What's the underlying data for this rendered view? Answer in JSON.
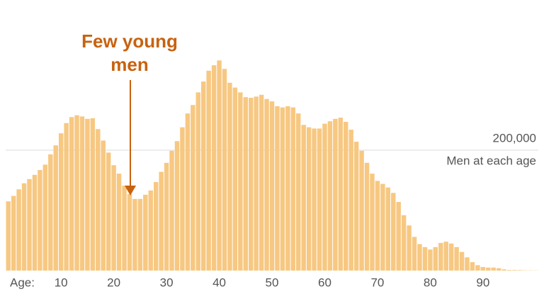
{
  "chart_data": {
    "type": "bar",
    "annotation": [
      "Few young",
      "men"
    ],
    "xlabel": "Age:",
    "ylabel": "Men at each age",
    "x": [
      0,
      1,
      2,
      3,
      4,
      5,
      6,
      7,
      8,
      9,
      10,
      11,
      12,
      13,
      14,
      15,
      16,
      17,
      18,
      19,
      20,
      21,
      22,
      23,
      24,
      25,
      26,
      27,
      28,
      29,
      30,
      31,
      32,
      33,
      34,
      35,
      36,
      37,
      38,
      39,
      40,
      41,
      42,
      43,
      44,
      45,
      46,
      47,
      48,
      49,
      50,
      51,
      52,
      53,
      54,
      55,
      56,
      57,
      58,
      59,
      60,
      61,
      62,
      63,
      64,
      65,
      66,
      67,
      68,
      69,
      70,
      71,
      72,
      73,
      74,
      75,
      76,
      77,
      78,
      79,
      80,
      81,
      82,
      83,
      84,
      85,
      86,
      87,
      88,
      89,
      90,
      91,
      92,
      93,
      94,
      95,
      96,
      97,
      98,
      99,
      100
    ],
    "values": [
      115000,
      124000,
      135000,
      145000,
      152000,
      159000,
      167000,
      176000,
      193000,
      208000,
      228000,
      245000,
      255000,
      258000,
      256000,
      252000,
      253000,
      235000,
      216000,
      196000,
      175000,
      161000,
      141000,
      127000,
      119000,
      119000,
      126000,
      133000,
      147000,
      164000,
      179000,
      199000,
      215000,
      238000,
      261000,
      275000,
      296000,
      314000,
      332000,
      341000,
      349000,
      335000,
      312000,
      304000,
      296000,
      288000,
      287000,
      289000,
      292000,
      285000,
      281000,
      273000,
      271000,
      273000,
      271000,
      261000,
      242000,
      238000,
      236000,
      236000,
      244000,
      248000,
      252000,
      254000,
      247000,
      234000,
      214000,
      199000,
      179000,
      161000,
      149000,
      144000,
      138000,
      129000,
      114000,
      92000,
      75000,
      56000,
      44000,
      39000,
      35000,
      39000,
      46000,
      48000,
      45000,
      39000,
      31000,
      22000,
      14000,
      9000,
      6000,
      5000,
      5000,
      4000,
      2000,
      1000,
      1000,
      800,
      500,
      400,
      300
    ],
    "color": "#f7c882",
    "annotation_color": "#c8620f",
    "xlim": [
      -0.5,
      100.5
    ],
    "xticks": [
      10,
      20,
      30,
      40,
      50,
      60,
      70,
      80,
      90
    ],
    "ylim": [
      0,
      400000
    ],
    "yticks": [
      {
        "value": 200000,
        "label": "200,000"
      }
    ],
    "grid": true
  }
}
